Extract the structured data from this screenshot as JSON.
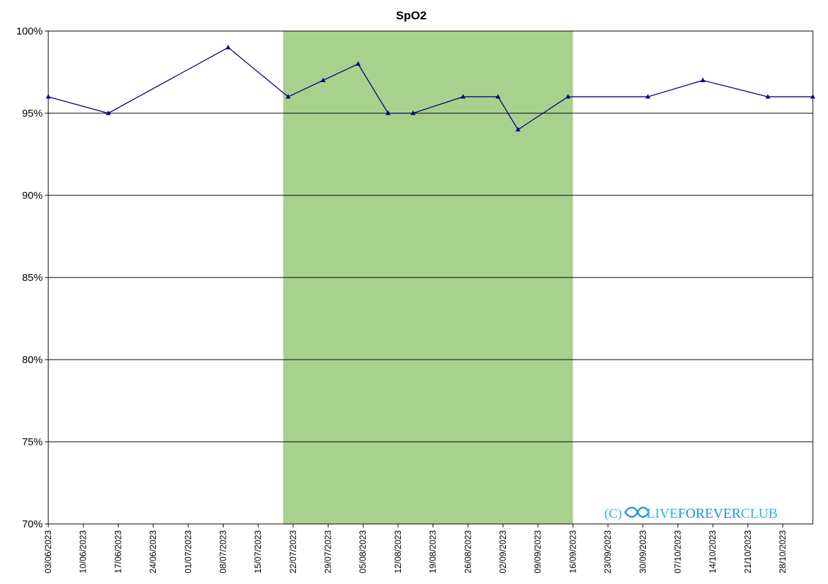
{
  "chart_data": {
    "type": "line",
    "title": "SpO2",
    "xlabel": "",
    "ylabel": "",
    "x_axis": {
      "type": "date",
      "range": [
        "2023-06-03",
        "2023-11-03"
      ],
      "tick_labels": [
        "03/06/2023",
        "10/06/2023",
        "17/06/2023",
        "24/06/2023",
        "01/07/2023",
        "08/07/2023",
        "15/07/2023",
        "22/07/2023",
        "29/07/2023",
        "05/08/2023",
        "12/08/2023",
        "19/08/2023",
        "26/08/2023",
        "02/09/2023",
        "09/09/2023",
        "16/09/2023",
        "23/09/2023",
        "30/09/2023",
        "07/10/2023",
        "14/10/2023",
        "21/10/2023",
        "28/10/2023"
      ],
      "tick_dates": [
        "2023-06-03",
        "2023-06-10",
        "2023-06-17",
        "2023-06-24",
        "2023-07-01",
        "2023-07-08",
        "2023-07-15",
        "2023-07-22",
        "2023-07-29",
        "2023-08-05",
        "2023-08-12",
        "2023-08-19",
        "2023-08-26",
        "2023-09-02",
        "2023-09-09",
        "2023-09-16",
        "2023-09-23",
        "2023-09-30",
        "2023-10-07",
        "2023-10-14",
        "2023-10-21",
        "2023-10-28"
      ]
    },
    "y_axis": {
      "range": [
        70,
        100
      ],
      "tick_values": [
        70,
        75,
        80,
        85,
        90,
        95,
        100
      ],
      "tick_labels": [
        "70%",
        "75%",
        "80%",
        "85%",
        "90%",
        "95%",
        "100%"
      ]
    },
    "grid": true,
    "legend": "none",
    "highlight_band": {
      "x_range": [
        "2023-07-20",
        "2023-09-16"
      ],
      "color": "#a9d18e"
    },
    "series": [
      {
        "color": "#000080",
        "marker": "triangle",
        "x": [
          "2023-06-03",
          "2023-06-15",
          "2023-07-09",
          "2023-07-21",
          "2023-07-28",
          "2023-08-04",
          "2023-08-10",
          "2023-08-15",
          "2023-08-25",
          "2023-09-01",
          "2023-09-05",
          "2023-09-15",
          "2023-10-01",
          "2023-10-12",
          "2023-10-25",
          "2023-11-03"
        ],
        "values": [
          96,
          95,
          99,
          96,
          97,
          98,
          95,
          95,
          96,
          96,
          94,
          96,
          96,
          97,
          96,
          96
        ]
      }
    ]
  },
  "watermark": {
    "prefix": "(C)",
    "brand_live": "LIVE",
    "brand_forever": "FOREVER",
    "brand_club": "CLUB"
  }
}
